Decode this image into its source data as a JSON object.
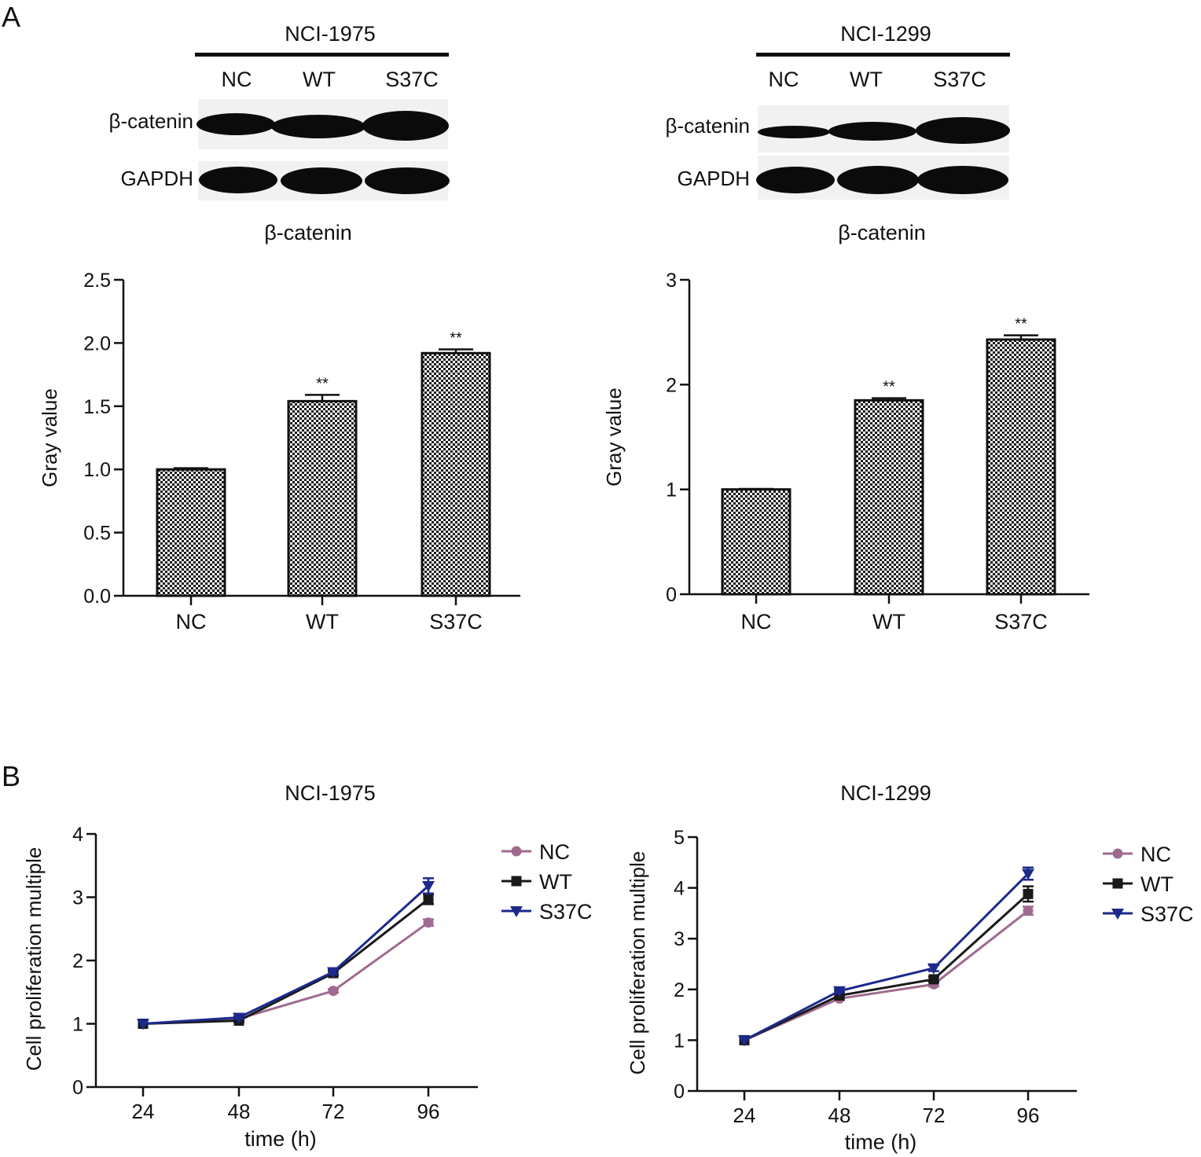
{
  "panels": {
    "a_label": "A",
    "b_label": "B"
  },
  "blots": [
    {
      "cell_line": "NCI-1975",
      "lanes": [
        "NC",
        "WT",
        "S37C"
      ],
      "rows": [
        "β-catenin",
        "GAPDH"
      ]
    },
    {
      "cell_line": "NCI-1299",
      "lanes": [
        "NC",
        "WT",
        "S37C"
      ],
      "rows": [
        "β-catenin",
        "GAPDH"
      ]
    }
  ],
  "chart_data": [
    {
      "type": "bar",
      "title": "β-catenin",
      "ylabel": "Gray value",
      "categories": [
        "NC",
        "WT",
        "S37C"
      ],
      "values": [
        1.0,
        1.54,
        1.92
      ],
      "errors": [
        0.01,
        0.05,
        0.03
      ],
      "annotations": [
        "",
        "**",
        "**"
      ],
      "ylim": [
        0,
        2.5
      ],
      "yticks": [
        "0.0",
        "0.5",
        "1.0",
        "1.5",
        "2.0",
        "2.5"
      ],
      "grid": false
    },
    {
      "type": "bar",
      "title": "β-catenin",
      "ylabel": "Gray value",
      "categories": [
        "NC",
        "WT",
        "S37C"
      ],
      "values": [
        1.0,
        1.85,
        2.43
      ],
      "errors": [
        0.005,
        0.02,
        0.04
      ],
      "annotations": [
        "",
        "**",
        "**"
      ],
      "ylim": [
        0,
        3
      ],
      "yticks": [
        "0",
        "1",
        "2",
        "3"
      ],
      "grid": false
    },
    {
      "type": "line",
      "title": "NCI-1975",
      "xlabel": "time (h)",
      "ylabel": "Cell proliferation multiple",
      "x": [
        24,
        48,
        72,
        96
      ],
      "xticks": [
        "24",
        "48",
        "72",
        "96"
      ],
      "ylim": [
        0,
        4
      ],
      "yticks": [
        "0",
        "1",
        "2",
        "3",
        "4"
      ],
      "legend": "right",
      "series": [
        {
          "name": "NC",
          "values": [
            1.0,
            1.08,
            1.52,
            2.6
          ],
          "errors": [
            0,
            0.02,
            0.03,
            0.05
          ],
          "color": "#a06a90",
          "marker": "circle"
        },
        {
          "name": "WT",
          "values": [
            1.0,
            1.05,
            1.8,
            2.97
          ],
          "errors": [
            0,
            0.02,
            0.04,
            0.08
          ],
          "color": "#1a1a1a",
          "marker": "square"
        },
        {
          "name": "S37C",
          "values": [
            1.0,
            1.1,
            1.82,
            3.18
          ],
          "errors": [
            0,
            0.02,
            0.04,
            0.12
          ],
          "color": "#1c2a8c",
          "marker": "triangle-down"
        }
      ]
    },
    {
      "type": "line",
      "title": "NCI-1299",
      "xlabel": "time (h)",
      "ylabel": "Cell proliferation multiple",
      "x": [
        24,
        48,
        72,
        96
      ],
      "xticks": [
        "24",
        "48",
        "72",
        "96"
      ],
      "ylim": [
        0,
        5
      ],
      "yticks": [
        "0",
        "1",
        "2",
        "3",
        "4",
        "5"
      ],
      "legend": "right",
      "series": [
        {
          "name": "NC",
          "values": [
            1.0,
            1.82,
            2.1,
            3.55
          ],
          "errors": [
            0,
            0.03,
            0.04,
            0.08
          ],
          "color": "#a06a90",
          "marker": "circle"
        },
        {
          "name": "WT",
          "values": [
            1.0,
            1.88,
            2.2,
            3.88
          ],
          "errors": [
            0,
            0.03,
            0.05,
            0.15
          ],
          "color": "#1a1a1a",
          "marker": "square"
        },
        {
          "name": "S37C",
          "values": [
            1.0,
            1.97,
            2.42,
            4.28
          ],
          "errors": [
            0,
            0.03,
            0.06,
            0.12
          ],
          "color": "#1c2a8c",
          "marker": "triangle-down"
        }
      ]
    }
  ]
}
